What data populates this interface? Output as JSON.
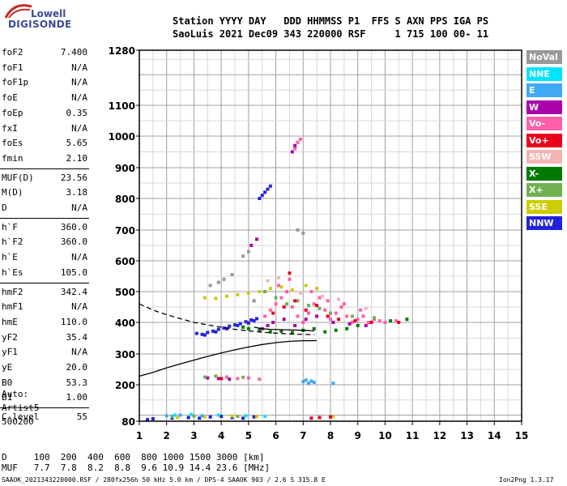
{
  "logo": {
    "line1": "Lowell",
    "line2": "DIGISONDE"
  },
  "header": {
    "line1": "Station YYYY DAY   DDD HHMMSS P1  FFS S AXN PPS IGA PS",
    "line2": "SaoLuis 2021 Dec09 343 220000 RSF     1 715 100 00- 11"
  },
  "params": [
    {
      "key": "foF2",
      "value": "7.400"
    },
    {
      "key": "foF1",
      "value": "N/A"
    },
    {
      "key": "foF1p",
      "value": "N/A"
    },
    {
      "key": "foE",
      "value": "N/A"
    },
    {
      "key": "foEp",
      "value": "0.35"
    },
    {
      "key": "fxI",
      "value": "N/A"
    },
    {
      "key": "foEs",
      "value": "5.65"
    },
    {
      "key": "fmin",
      "value": "2.10"
    },
    {
      "key": "MUF(D)",
      "value": "23.56"
    },
    {
      "key": "M(D)",
      "value": "3.18"
    },
    {
      "key": "D",
      "value": "N/A"
    },
    {
      "key": "h`F",
      "value": "360.0"
    },
    {
      "key": "h`F2",
      "value": "360.0"
    },
    {
      "key": "h`E",
      "value": "N/A"
    },
    {
      "key": "h`Es",
      "value": "105.0"
    },
    {
      "key": "hmF2",
      "value": "342.4"
    },
    {
      "key": "hmF1",
      "value": "N/A"
    },
    {
      "key": "hmE",
      "value": "110.0"
    },
    {
      "key": "yF2",
      "value": "35.4"
    },
    {
      "key": "yF1",
      "value": "N/A"
    },
    {
      "key": "yE",
      "value": "20.0"
    },
    {
      "key": "B0",
      "value": "53.3"
    },
    {
      "key": "B1",
      "value": "1.00"
    },
    {
      "key": "C-level",
      "value": "55"
    }
  ],
  "auto": {
    "line1": "Auto:",
    "line2": "Artist5",
    "line3": "500200"
  },
  "legend": [
    {
      "label": "NoVal",
      "color": "#999999"
    },
    {
      "label": "NNE",
      "color": "#00e5ff"
    },
    {
      "label": "E",
      "color": "#3fa9f5"
    },
    {
      "label": "W",
      "color": "#aa00aa"
    },
    {
      "label": "Vo-",
      "color": "#ff5fa8"
    },
    {
      "label": "Vo+",
      "color": "#e8001c"
    },
    {
      "label": "SSW",
      "color": "#f4b4b4"
    },
    {
      "label": "X-",
      "color": "#007a00"
    },
    {
      "label": "X+",
      "color": "#70b050"
    },
    {
      "label": "SSE",
      "color": "#cccc00"
    },
    {
      "label": "NNW",
      "color": "#2222dd"
    }
  ],
  "footer": {
    "line1": "D     100  200  400  600  800 1000 1500 3000 [km]",
    "line2": "MUF   7.7  7.8  8.2  8.8  9.6 10.9 14.4 23.6 [MHz]",
    "bottom_left": "SAAOK_2021343220000.RSF / 280fx256h 50 kHz 5.0 km / DPS-4 SAAOK 903 / 2.6 S 315.8 E",
    "bottom_right": "Ion2Png 1.3.17"
  },
  "chart_data": {
    "type": "scatter",
    "xlabel": "",
    "ylabel": "",
    "xlim": [
      1,
      15
    ],
    "ylim": [
      80,
      1280
    ],
    "x_ticks": [
      1,
      2,
      3,
      4,
      5,
      6,
      7,
      8,
      9,
      10,
      11,
      12,
      13,
      14,
      15
    ],
    "y_ticks": [
      80,
      200,
      300,
      400,
      500,
      600,
      700,
      800,
      900,
      1000,
      1100,
      1280
    ],
    "grid": true,
    "series": [
      {
        "color": "#2222dd",
        "points": [
          [
            3.1,
            365
          ],
          [
            3.3,
            362
          ],
          [
            3.5,
            368
          ],
          [
            3.7,
            372
          ],
          [
            3.9,
            378
          ],
          [
            4.1,
            382
          ],
          [
            4.3,
            388
          ],
          [
            4.5,
            392
          ],
          [
            4.7,
            396
          ],
          [
            4.9,
            402
          ],
          [
            5.1,
            408
          ],
          [
            5.3,
            412
          ],
          [
            3.4,
            360
          ],
          [
            3.8,
            370
          ],
          [
            4.2,
            380
          ],
          [
            4.6,
            390
          ],
          [
            5.0,
            398
          ],
          [
            5.2,
            405
          ],
          [
            2.8,
            92
          ],
          [
            3.2,
            90
          ],
          [
            3.6,
            94
          ],
          [
            4.0,
            96
          ],
          [
            4.4,
            92
          ],
          [
            4.8,
            90
          ],
          [
            5.2,
            94
          ],
          [
            5.5,
            810
          ],
          [
            5.6,
            820
          ],
          [
            5.7,
            830
          ],
          [
            5.4,
            800
          ],
          [
            5.8,
            840
          ],
          [
            1.3,
            85
          ],
          [
            1.5,
            88
          ],
          [
            2.2,
            90
          ]
        ]
      },
      {
        "color": "#ff5fa8",
        "points": [
          [
            5.6,
            420
          ],
          [
            5.8,
            440
          ],
          [
            6.0,
            460
          ],
          [
            6.2,
            480
          ],
          [
            6.4,
            500
          ],
          [
            6.6,
            450
          ],
          [
            6.8,
            420
          ],
          [
            7.0,
            400
          ],
          [
            7.2,
            430
          ],
          [
            7.4,
            460
          ],
          [
            7.6,
            480
          ],
          [
            7.8,
            440
          ],
          [
            8.0,
            410
          ],
          [
            8.2,
            430
          ],
          [
            8.4,
            450
          ],
          [
            8.6,
            420
          ],
          [
            8.8,
            400
          ],
          [
            9.0,
            410
          ],
          [
            9.2,
            420
          ],
          [
            9.4,
            400
          ],
          [
            9.6,
            410
          ],
          [
            9.8,
            405
          ],
          [
            10.0,
            400
          ],
          [
            10.4,
            405
          ],
          [
            6.1,
            520
          ],
          [
            6.5,
            540
          ],
          [
            7.3,
            500
          ],
          [
            7.9,
            470
          ],
          [
            8.5,
            460
          ],
          [
            9.1,
            440
          ],
          [
            6.7,
            960
          ],
          [
            6.8,
            980
          ],
          [
            6.9,
            990
          ],
          [
            4.2,
            225
          ],
          [
            4.6,
            220
          ],
          [
            5.0,
            222
          ],
          [
            5.4,
            218
          ]
        ]
      },
      {
        "color": "#aa00aa",
        "points": [
          [
            5.5,
            380
          ],
          [
            5.7,
            390
          ],
          [
            5.9,
            400
          ],
          [
            6.3,
            410
          ],
          [
            6.7,
            390
          ],
          [
            7.1,
            410
          ],
          [
            7.5,
            420
          ],
          [
            8.1,
            400
          ],
          [
            8.7,
            395
          ],
          [
            9.3,
            390
          ],
          [
            6.6,
            950
          ],
          [
            6.7,
            970
          ],
          [
            5.1,
            650
          ],
          [
            5.3,
            670
          ],
          [
            3.5,
            222
          ],
          [
            3.9,
            220
          ],
          [
            4.3,
            218
          ]
        ]
      },
      {
        "color": "#007a00",
        "points": [
          [
            5.4,
            375
          ],
          [
            5.8,
            370
          ],
          [
            6.2,
            372
          ],
          [
            6.6,
            368
          ],
          [
            7.0,
            375
          ],
          [
            7.4,
            380
          ],
          [
            7.8,
            370
          ],
          [
            8.2,
            375
          ],
          [
            8.6,
            380
          ],
          [
            9.0,
            390
          ],
          [
            10.2,
            405
          ],
          [
            10.8,
            410
          ],
          [
            4.8,
            385
          ],
          [
            5.0,
            380
          ]
        ]
      },
      {
        "color": "#70b050",
        "points": [
          [
            5.2,
            470
          ],
          [
            5.6,
            500
          ],
          [
            6.0,
            480
          ],
          [
            6.4,
            460
          ],
          [
            6.8,
            470
          ],
          [
            7.2,
            455
          ],
          [
            7.6,
            445
          ],
          [
            8.0,
            430
          ],
          [
            8.8,
            420
          ],
          [
            9.6,
            415
          ],
          [
            3.4,
            225
          ],
          [
            3.8,
            228
          ],
          [
            4.8,
            224
          ],
          [
            2.2,
            95
          ],
          [
            3.0,
            97
          ],
          [
            4.6,
            96
          ]
        ]
      },
      {
        "color": "#cccc00",
        "points": [
          [
            3.4,
            480
          ],
          [
            3.8,
            478
          ],
          [
            4.2,
            485
          ],
          [
            4.6,
            490
          ],
          [
            5.0,
            495
          ],
          [
            5.4,
            500
          ],
          [
            5.8,
            510
          ],
          [
            6.2,
            515
          ],
          [
            6.6,
            505
          ],
          [
            7.1,
            520
          ],
          [
            7.5,
            510
          ],
          [
            2.4,
            92
          ],
          [
            3.4,
            95
          ],
          [
            4.4,
            97
          ],
          [
            5.3,
            95
          ],
          [
            8.1,
            95
          ]
        ]
      },
      {
        "color": "#e8001c",
        "points": [
          [
            5.9,
            430
          ],
          [
            6.3,
            450
          ],
          [
            6.7,
            470
          ],
          [
            7.1,
            440
          ],
          [
            7.5,
            455
          ],
          [
            7.9,
            420
          ],
          [
            8.3,
            410
          ],
          [
            8.9,
            405
          ],
          [
            9.5,
            400
          ],
          [
            10.5,
            400
          ],
          [
            7.3,
            90
          ],
          [
            7.6,
            92
          ],
          [
            8.0,
            94
          ],
          [
            6.5,
            560
          ],
          [
            4.0,
            220
          ]
        ]
      },
      {
        "color": "#3fa9f5",
        "points": [
          [
            7.0,
            210
          ],
          [
            7.1,
            215
          ],
          [
            7.2,
            205
          ],
          [
            7.3,
            212
          ],
          [
            7.4,
            208
          ],
          [
            8.1,
            205
          ],
          [
            2.0,
            98
          ],
          [
            2.5,
            100
          ],
          [
            3.3,
            98
          ]
        ]
      },
      {
        "color": "#00e5ff",
        "points": [
          [
            2.3,
            100
          ],
          [
            2.9,
            102
          ],
          [
            3.9,
            100
          ],
          [
            4.9,
            98
          ],
          [
            5.6,
            96
          ]
        ]
      },
      {
        "color": "#f4b4b4",
        "points": [
          [
            5.7,
            535
          ],
          [
            6.1,
            545
          ],
          [
            6.9,
            495
          ],
          [
            7.7,
            485
          ],
          [
            8.3,
            475
          ],
          [
            9.3,
            445
          ]
        ]
      },
      {
        "color": "#999999",
        "points": [
          [
            4.8,
            615
          ],
          [
            5.0,
            630
          ],
          [
            3.6,
            520
          ],
          [
            3.9,
            530
          ],
          [
            4.1,
            540
          ],
          [
            4.4,
            555
          ],
          [
            5.2,
            470
          ],
          [
            6.8,
            700
          ],
          [
            7.0,
            690
          ]
        ]
      }
    ],
    "traces": [
      {
        "style": "dashed",
        "points": [
          [
            1,
            460
          ],
          [
            1.5,
            440
          ],
          [
            2,
            425
          ],
          [
            2.5,
            412
          ],
          [
            3,
            400
          ],
          [
            3.5,
            392
          ],
          [
            4,
            385
          ],
          [
            4.5,
            378
          ],
          [
            5,
            373
          ],
          [
            5.5,
            369
          ],
          [
            6,
            366
          ],
          [
            6.5,
            363
          ],
          [
            7,
            362
          ],
          [
            7.4,
            361
          ]
        ]
      },
      {
        "style": "solid",
        "points": [
          [
            1,
            228
          ],
          [
            1.5,
            240
          ],
          [
            2,
            255
          ],
          [
            2.5,
            268
          ],
          [
            3,
            280
          ],
          [
            3.5,
            292
          ],
          [
            4,
            303
          ],
          [
            4.5,
            313
          ],
          [
            5,
            322
          ],
          [
            5.5,
            330
          ],
          [
            6,
            336
          ],
          [
            6.5,
            340
          ],
          [
            7,
            342
          ],
          [
            7.5,
            342.4
          ]
        ]
      },
      {
        "style": "solid",
        "points": [
          [
            5.2,
            385
          ],
          [
            5.5,
            380
          ],
          [
            5.8,
            378
          ],
          [
            6.2,
            377
          ],
          [
            6.6,
            376
          ],
          [
            7.0,
            375
          ],
          [
            7.4,
            373
          ]
        ]
      }
    ]
  }
}
